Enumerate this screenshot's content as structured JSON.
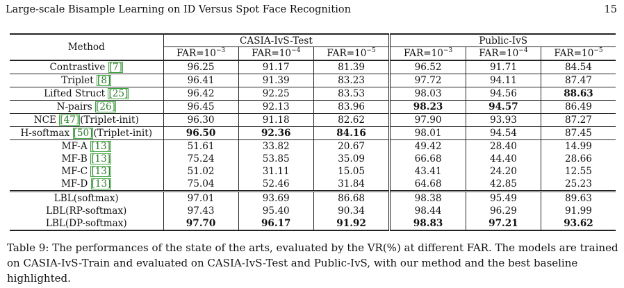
{
  "header": {
    "running_title": "Large-scale Bisample Learning on ID Versus Spot Face Recognition",
    "page_number": "15"
  },
  "table": {
    "method_header": "Method",
    "groups": [
      "CASIA-IvS-Test",
      "Public-IvS"
    ],
    "far_prefix": "FAR=10",
    "far_exponents": [
      "−3",
      "−4",
      "−5",
      "−3",
      "−4",
      "−5"
    ],
    "rows": [
      {
        "method": "Contrastive",
        "ref": "[7]",
        "suffix": "",
        "values": [
          "96.25",
          "91.17",
          "81.39",
          "96.52",
          "91.71",
          "84.54"
        ],
        "bold": [
          false,
          false,
          false,
          false,
          false,
          false
        ]
      },
      {
        "method": "Triplet",
        "ref": "[8]",
        "suffix": "",
        "values": [
          "96.41",
          "91.39",
          "83.23",
          "97.72",
          "94.11",
          "87.47"
        ],
        "bold": [
          false,
          false,
          false,
          false,
          false,
          false
        ]
      },
      {
        "method": "Lifted Struct",
        "ref": "[25]",
        "suffix": "",
        "values": [
          "96.42",
          "92.25",
          "83.53",
          "98.03",
          "94.56",
          "88.63"
        ],
        "bold": [
          false,
          false,
          false,
          false,
          false,
          true
        ]
      },
      {
        "method": "N-pairs",
        "ref": "[26]",
        "suffix": "",
        "values": [
          "96.45",
          "92.13",
          "83.96",
          "98.23",
          "94.57",
          "86.49"
        ],
        "bold": [
          false,
          false,
          false,
          true,
          true,
          false
        ]
      },
      {
        "method": "NCE",
        "ref": "[47]",
        "suffix": "(Triplet-init)",
        "values": [
          "96.30",
          "91.18",
          "82.62",
          "97.90",
          "93.93",
          "87.27"
        ],
        "bold": [
          false,
          false,
          false,
          false,
          false,
          false
        ]
      },
      {
        "method": "H-softmax",
        "ref": "[50]",
        "suffix": "(Triplet-init)",
        "values": [
          "96.50",
          "92.36",
          "84.16",
          "98.01",
          "94.54",
          "87.45"
        ],
        "bold": [
          true,
          true,
          true,
          false,
          false,
          false
        ]
      },
      {
        "method": "MF-A",
        "ref": "[13]",
        "suffix": "",
        "values": [
          "51.61",
          "33.82",
          "20.67",
          "49.42",
          "28.40",
          "14.99"
        ],
        "bold": [
          false,
          false,
          false,
          false,
          false,
          false
        ]
      },
      {
        "method": "MF-B",
        "ref": "[13]",
        "suffix": "",
        "values": [
          "75.24",
          "53.85",
          "35.09",
          "66.68",
          "44.40",
          "28.66"
        ],
        "bold": [
          false,
          false,
          false,
          false,
          false,
          false
        ]
      },
      {
        "method": "MF-C",
        "ref": "[13]",
        "suffix": "",
        "values": [
          "51.02",
          "31.11",
          "15.05",
          "43.41",
          "24.20",
          "12.55"
        ],
        "bold": [
          false,
          false,
          false,
          false,
          false,
          false
        ]
      },
      {
        "method": "MF-D",
        "ref": "[13]",
        "suffix": "",
        "values": [
          "75.04",
          "52.46",
          "31.84",
          "64.68",
          "42.85",
          "25.23"
        ],
        "bold": [
          false,
          false,
          false,
          false,
          false,
          false
        ]
      },
      {
        "method": "LBL(softmax)",
        "ref": "",
        "suffix": "",
        "values": [
          "97.01",
          "93.69",
          "86.68",
          "98.38",
          "95.49",
          "89.63"
        ],
        "bold": [
          false,
          false,
          false,
          false,
          false,
          false
        ]
      },
      {
        "method": "LBL(RP-softmax)",
        "ref": "",
        "suffix": "",
        "values": [
          "97.43",
          "95.40",
          "90.34",
          "98.44",
          "96.29",
          "91.99"
        ],
        "bold": [
          false,
          false,
          false,
          false,
          false,
          false
        ]
      },
      {
        "method": "LBL(DP-softmax)",
        "ref": "",
        "suffix": "",
        "values": [
          "97.70",
          "96.17",
          "91.92",
          "98.83",
          "97.21",
          "93.62"
        ],
        "bold": [
          true,
          true,
          true,
          true,
          true,
          true
        ]
      }
    ]
  },
  "caption": "Table 9: The performances of the state of the arts, evaluated by the VR(%) at different FAR. The models are trained on CASIA-IvS-Train and evaluated on CASIA-IvS-Test and Public-IvS, with our method and the best baseline highlighted."
}
